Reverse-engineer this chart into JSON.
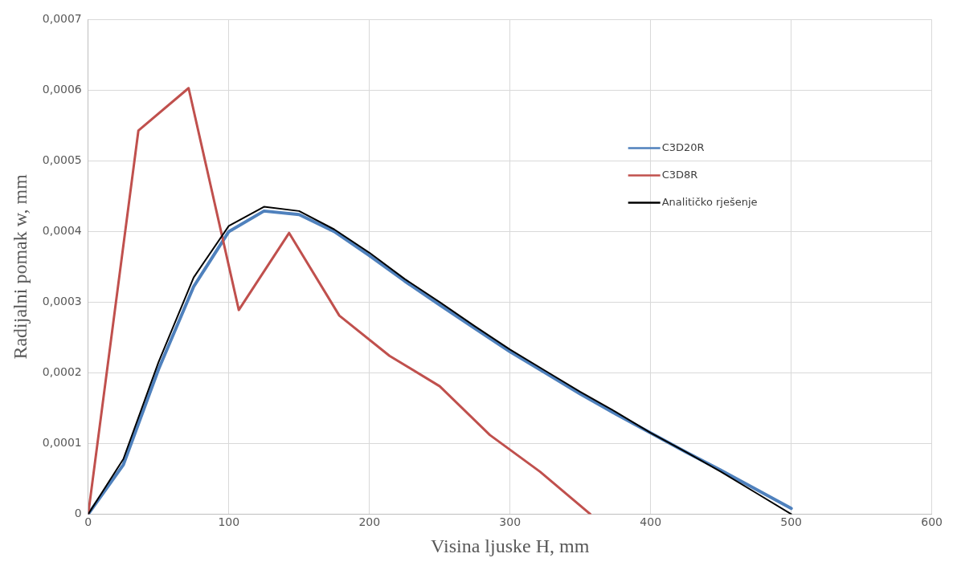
{
  "chart_data": {
    "type": "line",
    "xlabel": "Visina ljuske H, mm",
    "ylabel": "Radijalni pomak w, mm",
    "xlim": [
      0,
      600
    ],
    "xticks": [
      0,
      100,
      200,
      300,
      400,
      500,
      600
    ],
    "ylim": [
      0,
      0.0007
    ],
    "yticks": [
      0,
      {
        "value": 0.0001,
        "label": "0,0001"
      },
      {
        "value": 0.0002,
        "label": "0,0002"
      },
      {
        "value": 0.0003,
        "label": "0,0003"
      },
      {
        "value": 0.0004,
        "label": "0,0004"
      },
      {
        "value": 0.0005,
        "label": "0,0005"
      },
      {
        "value": 0.0006,
        "label": "0,0006"
      },
      {
        "value": 0.0007,
        "label": "0,0007"
      }
    ],
    "grid": true,
    "legend": "right",
    "marker": "none",
    "line_style": "solid",
    "series": [
      {
        "name": "C3D20R",
        "color": "#4f81bd",
        "x": [
          0,
          25,
          50,
          75,
          100,
          125,
          150,
          175,
          200,
          225,
          250,
          275,
          300,
          325,
          350,
          375,
          400,
          425,
          450,
          475,
          500
        ],
        "values": [
          0,
          7e-05,
          0.000205,
          0.000322,
          0.0004,
          0.000429,
          0.000424,
          0.0004,
          0.000366,
          0.00033,
          0.000296,
          0.000263,
          0.00023,
          0.0002,
          0.00017,
          0.000142,
          0.000115,
          8.8e-05,
          6.2e-05,
          3.5e-05,
          8e-06
        ]
      },
      {
        "name": "C3D8R",
        "color": "#c0504d",
        "x": [
          0,
          35.7,
          71.4,
          107.1,
          142.9,
          178.6,
          214.3,
          250,
          285.7,
          321.4,
          357.1
        ],
        "values": [
          0,
          0.000543,
          0.000603,
          0.000289,
          0.000398,
          0.000281,
          0.000224,
          0.000181,
          0.000112,
          6e-05,
          0
        ]
      },
      {
        "name": "Analitičko rješenje",
        "color": "#000000",
        "x": [
          0,
          25,
          50,
          75,
          100,
          125,
          150,
          175,
          200,
          225,
          250,
          275,
          300,
          325,
          350,
          375,
          400,
          425,
          450,
          475,
          500
        ],
        "values": [
          0,
          7.8e-05,
          0.000215,
          0.000335,
          0.000408,
          0.000435,
          0.000429,
          0.000403,
          0.00037,
          0.000333,
          0.0003,
          0.000266,
          0.000233,
          0.000203,
          0.000173,
          0.000145,
          0.000115,
          8.8e-05,
          6e-05,
          3e-05,
          0
        ]
      }
    ]
  }
}
